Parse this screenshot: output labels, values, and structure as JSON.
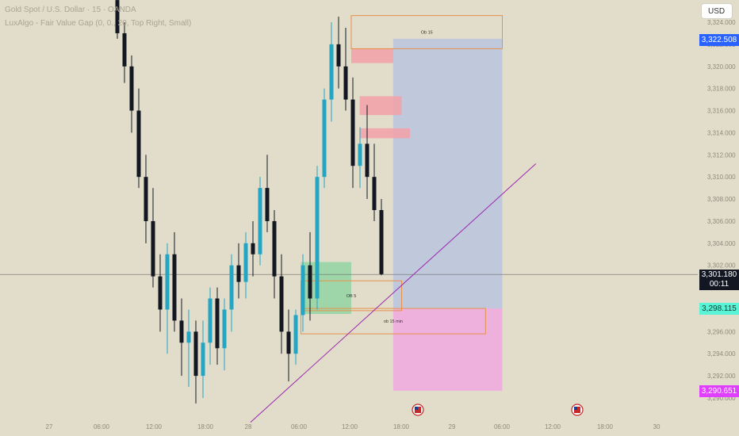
{
  "header": {
    "title": "Gold Spot / U.S. Dollar · 15 · OANDA",
    "indicator": "LuxAlgo - Fair Value Gap (0, 0., 20, Top Right, Small)",
    "currency_button": "USD"
  },
  "price_tags": {
    "top": "3,322.508",
    "current": "3,301.180",
    "countdown": "00:11",
    "target_lower": "3,298.115",
    "stop": "3,290.651"
  },
  "annotations": {
    "ob_upper": "Ob 15",
    "ob_mid": "OB 5",
    "ob_lower": "ob 15 min"
  },
  "colors": {
    "background": "#e2dcca",
    "bull": "#22a6c4",
    "bear": "#131722",
    "fvg_bear": "#f2a0a8",
    "profit_zone": "#b9c6de",
    "loss_zone": "#f0a9e0",
    "long_entry_zone": "#8ed4a0",
    "order_block_outline": "#e8914a",
    "trendline": "#9c27b0",
    "current_price": "#131722",
    "top_tag": "#2962ff",
    "target_tag": "#59f3d6",
    "stop_tag": "#e040fb"
  },
  "chart_data": {
    "type": "candlestick",
    "symbol": "XAUUSD",
    "timeframe": "15",
    "yaxis": {
      "ylim": [
        3289,
        3325
      ],
      "ticks": [
        "3,324.000",
        "3,322.000",
        "3,320.000",
        "3,318.000",
        "3,316.000",
        "3,314.000",
        "3,312.000",
        "3,310.000",
        "3,308.000",
        "3,306.000",
        "3,304.000",
        "3,302.000",
        "3,300.000",
        "3,298.000",
        "3,296.000",
        "3,294.000",
        "3,292.000",
        "3,290.000"
      ]
    },
    "xaxis": {
      "ticks": [
        "27",
        "06:00",
        "12:00",
        "18:00",
        "28",
        "06:00",
        "12:00",
        "18:00",
        "29",
        "06:00",
        "12:00",
        "18:00",
        "30"
      ]
    },
    "price_levels": {
      "top": 3322.508,
      "current": 3301.18,
      "target_lower": 3298.115,
      "stop": 3290.651
    },
    "zones": [
      {
        "label": "Ob 15",
        "kind": "order_block",
        "top": 3324.6,
        "bottom": 3321.6,
        "x_from": "28 12:00",
        "x_to": "29 06:00"
      },
      {
        "label": "OB 5",
        "kind": "order_block",
        "top": 3300.6,
        "bottom": 3297.9,
        "x_from": "28 06:00",
        "x_to": "28 18:00"
      },
      {
        "label": "ob 15 min",
        "kind": "order_block",
        "top": 3298.1,
        "bottom": 3295.8,
        "x_from": "28 06:00",
        "x_to": "29 04:00"
      },
      {
        "label": "",
        "kind": "fvg_bear",
        "top": 3321.6,
        "bottom": 3320.3,
        "x_from": "28 12:00",
        "x_to": "28 17:00"
      },
      {
        "label": "",
        "kind": "fvg_bear",
        "top": 3317.3,
        "bottom": 3315.6,
        "x_from": "28 13:00",
        "x_to": "28 18:00"
      },
      {
        "label": "",
        "kind": "fvg_bear",
        "top": 3314.4,
        "bottom": 3313.5,
        "x_from": "28 13:00",
        "x_to": "28 19:00"
      },
      {
        "label": "",
        "kind": "long_entry",
        "top": 3302.3,
        "bottom": 3297.6,
        "x_from": "28 06:00",
        "x_to": "28 12:00"
      },
      {
        "label": "",
        "kind": "profit",
        "top": 3322.5,
        "bottom": 3298.1,
        "x_from": "28 17:00",
        "x_to": "29 06:00"
      },
      {
        "label": "",
        "kind": "loss",
        "top": 3298.1,
        "bottom": 3290.65,
        "x_from": "28 17:00",
        "x_to": "29 06:00"
      }
    ],
    "trendline": {
      "from": {
        "time": "28 00:00",
        "price": 3287.8
      },
      "to": {
        "time": "29 10:00",
        "price": 3311.2
      }
    },
    "candles": [
      {
        "o": 3326.0,
        "h": 3326.8,
        "l": 3322.5,
        "c": 3323.0
      },
      {
        "o": 3323.0,
        "h": 3324.0,
        "l": 3318.5,
        "c": 3320.0
      },
      {
        "o": 3320.0,
        "h": 3321.0,
        "l": 3314.0,
        "c": 3316.0
      },
      {
        "o": 3316.0,
        "h": 3318.0,
        "l": 3309.0,
        "c": 3310.0
      },
      {
        "o": 3310.0,
        "h": 3312.0,
        "l": 3304.0,
        "c": 3306.0
      },
      {
        "o": 3306.0,
        "h": 3309.0,
        "l": 3300.0,
        "c": 3301.0
      },
      {
        "o": 3301.0,
        "h": 3303.0,
        "l": 3296.0,
        "c": 3298.0
      },
      {
        "o": 3298.0,
        "h": 3304.0,
        "l": 3294.0,
        "c": 3303.0
      },
      {
        "o": 3303.0,
        "h": 3305.0,
        "l": 3296.0,
        "c": 3297.0
      },
      {
        "o": 3297.0,
        "h": 3299.0,
        "l": 3292.0,
        "c": 3295.0
      },
      {
        "o": 3295.0,
        "h": 3298.0,
        "l": 3291.0,
        "c": 3296.0
      },
      {
        "o": 3296.0,
        "h": 3297.0,
        "l": 3289.5,
        "c": 3292.0
      },
      {
        "o": 3292.0,
        "h": 3297.0,
        "l": 3290.0,
        "c": 3295.0
      },
      {
        "o": 3295.0,
        "h": 3300.0,
        "l": 3293.0,
        "c": 3299.0
      },
      {
        "o": 3299.0,
        "h": 3300.0,
        "l": 3293.0,
        "c": 3294.5
      },
      {
        "o": 3294.5,
        "h": 3299.0,
        "l": 3292.5,
        "c": 3298.0
      },
      {
        "o": 3298.0,
        "h": 3303.0,
        "l": 3296.0,
        "c": 3302.0
      },
      {
        "o": 3302.0,
        "h": 3304.0,
        "l": 3299.0,
        "c": 3300.5
      },
      {
        "o": 3300.5,
        "h": 3305.0,
        "l": 3299.0,
        "c": 3304.0
      },
      {
        "o": 3304.0,
        "h": 3306.0,
        "l": 3301.0,
        "c": 3303.0
      },
      {
        "o": 3303.0,
        "h": 3310.0,
        "l": 3302.0,
        "c": 3309.0
      },
      {
        "o": 3309.0,
        "h": 3312.0,
        "l": 3305.0,
        "c": 3306.0
      },
      {
        "o": 3306.0,
        "h": 3307.0,
        "l": 3299.0,
        "c": 3301.0
      },
      {
        "o": 3301.0,
        "h": 3303.0,
        "l": 3294.0,
        "c": 3296.0
      },
      {
        "o": 3296.0,
        "h": 3298.0,
        "l": 3291.5,
        "c": 3294.0
      },
      {
        "o": 3294.0,
        "h": 3298.0,
        "l": 3293.0,
        "c": 3297.5
      },
      {
        "o": 3297.5,
        "h": 3303.0,
        "l": 3296.0,
        "c": 3302.0
      },
      {
        "o": 3302.0,
        "h": 3305.0,
        "l": 3297.0,
        "c": 3299.0
      },
      {
        "o": 3299.0,
        "h": 3311.0,
        "l": 3298.0,
        "c": 3310.0
      },
      {
        "o": 3310.0,
        "h": 3318.0,
        "l": 3309.0,
        "c": 3317.0
      },
      {
        "o": 3317.0,
        "h": 3324.0,
        "l": 3315.0,
        "c": 3322.0
      },
      {
        "o": 3322.0,
        "h": 3324.5,
        "l": 3318.0,
        "c": 3320.0
      },
      {
        "o": 3320.0,
        "h": 3323.5,
        "l": 3316.0,
        "c": 3317.0
      },
      {
        "o": 3317.0,
        "h": 3319.0,
        "l": 3309.0,
        "c": 3311.0
      },
      {
        "o": 3311.0,
        "h": 3314.5,
        "l": 3309.0,
        "c": 3313.0
      },
      {
        "o": 3313.0,
        "h": 3316.5,
        "l": 3308.0,
        "c": 3310.0
      },
      {
        "o": 3310.0,
        "h": 3313.0,
        "l": 3306.0,
        "c": 3307.0
      },
      {
        "o": 3307.0,
        "h": 3308.0,
        "l": 3301.1,
        "c": 3301.2
      }
    ]
  }
}
